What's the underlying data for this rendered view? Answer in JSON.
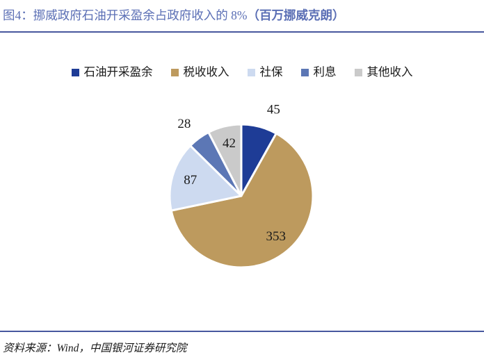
{
  "header": {
    "title_main": "图4：挪威政府石油开采盈余占政府收入的 8%",
    "title_unit": "（百万挪威克朗）"
  },
  "chart_data": {
    "type": "pie",
    "title": "挪威政府石油开采盈余占政府收入的 8%（百万挪威克朗）",
    "unit": "百万挪威克朗",
    "categories": [
      "石油开采盈余",
      "税收收入",
      "社保",
      "利息",
      "其他收入"
    ],
    "values": [
      45,
      353,
      87,
      28,
      42
    ],
    "data_labels": [
      "45",
      "353",
      "87",
      "28",
      "42"
    ],
    "colors": [
      "#1E3C96",
      "#BD9A5E",
      "#CDDAF0",
      "#5C77B5",
      "#CACACA"
    ],
    "legend_position": "top",
    "start_angle_deg": 0,
    "direction": "clockwise",
    "total": 555
  },
  "footer": {
    "source": "资料来源：Wind，中国银河证券研究院"
  },
  "theme": {
    "title_color": "#5B6FB5",
    "divider_color": "#47579E",
    "label_color": "#1A1A1A",
    "background": "#FFFFFF",
    "slice_border_color": "#FFFFFF"
  }
}
